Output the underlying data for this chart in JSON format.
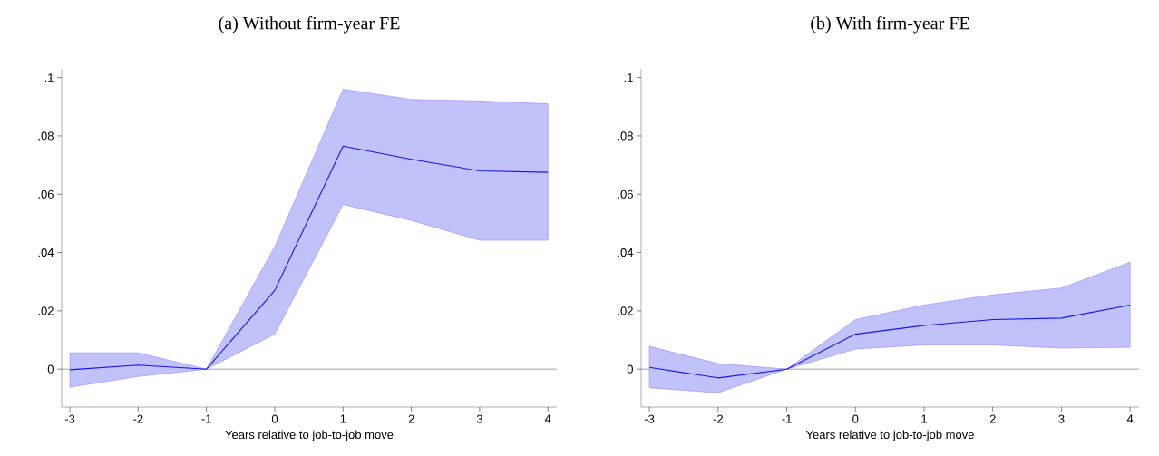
{
  "chart_data": [
    {
      "type": "line",
      "title": "(a) Without firm-year FE",
      "xlabel": "Years relative to job-to-job move",
      "x": [
        -3,
        -2,
        -1,
        0,
        1,
        2,
        3,
        4
      ],
      "series": [
        {
          "color": "#1414f0",
          "values": [
            -0.0002,
            0.0014,
            0,
            0.027,
            0.0765,
            0.072,
            0.068,
            0.0675
          ],
          "lower": [
            -0.0062,
            -0.0025,
            0,
            0.012,
            0.0565,
            0.051,
            0.0442,
            0.0442
          ],
          "upper": [
            0.0056,
            0.0056,
            0,
            0.042,
            0.096,
            0.0925,
            0.092,
            0.091
          ]
        }
      ],
      "xlim": [
        -3.12,
        4.13
      ],
      "ylim": [
        -0.013,
        0.103
      ],
      "xticks": [
        -3,
        -2,
        -1,
        0,
        1,
        2,
        3,
        4
      ],
      "yticks": [
        {
          "value": 0,
          "label": "0"
        },
        {
          "value": 0.02,
          "label": ".02"
        },
        {
          "value": 0.04,
          "label": ".04"
        },
        {
          "value": 0.06,
          "label": ".06"
        },
        {
          "value": 0.08,
          "label": ".08"
        },
        {
          "value": 0.1,
          "label": ".1"
        }
      ],
      "ref_lines": [
        {
          "axis": "y",
          "value": 0,
          "color": "#8c8c8c"
        }
      ]
    },
    {
      "type": "line",
      "title": "(b) With firm-year FE",
      "xlabel": "Years relative to job-to-job move",
      "x": [
        -3,
        -2,
        -1,
        0,
        1,
        2,
        3,
        4
      ],
      "series": [
        {
          "color": "#1414f0",
          "values": [
            0.0006,
            -0.003,
            0,
            0.012,
            0.015,
            0.017,
            0.0175,
            0.022
          ],
          "lower": [
            -0.0064,
            -0.0081,
            0,
            0.0069,
            0.0083,
            0.0083,
            0.0072,
            0.0075
          ],
          "upper": [
            0.0078,
            0.0019,
            0,
            0.017,
            0.022,
            0.0255,
            0.0278,
            0.0367
          ]
        }
      ],
      "xlim": [
        -3.12,
        4.13
      ],
      "ylim": [
        -0.013,
        0.103
      ],
      "xticks": [
        -3,
        -2,
        -1,
        0,
        1,
        2,
        3,
        4
      ],
      "yticks": [
        {
          "value": 0,
          "label": "0"
        },
        {
          "value": 0.02,
          "label": ".02"
        },
        {
          "value": 0.04,
          "label": ".04"
        },
        {
          "value": 0.06,
          "label": ".06"
        },
        {
          "value": 0.08,
          "label": ".08"
        },
        {
          "value": 0.1,
          "label": ".1"
        }
      ],
      "ref_lines": [
        {
          "axis": "y",
          "value": 0,
          "color": "#8c8c8c"
        }
      ]
    }
  ]
}
